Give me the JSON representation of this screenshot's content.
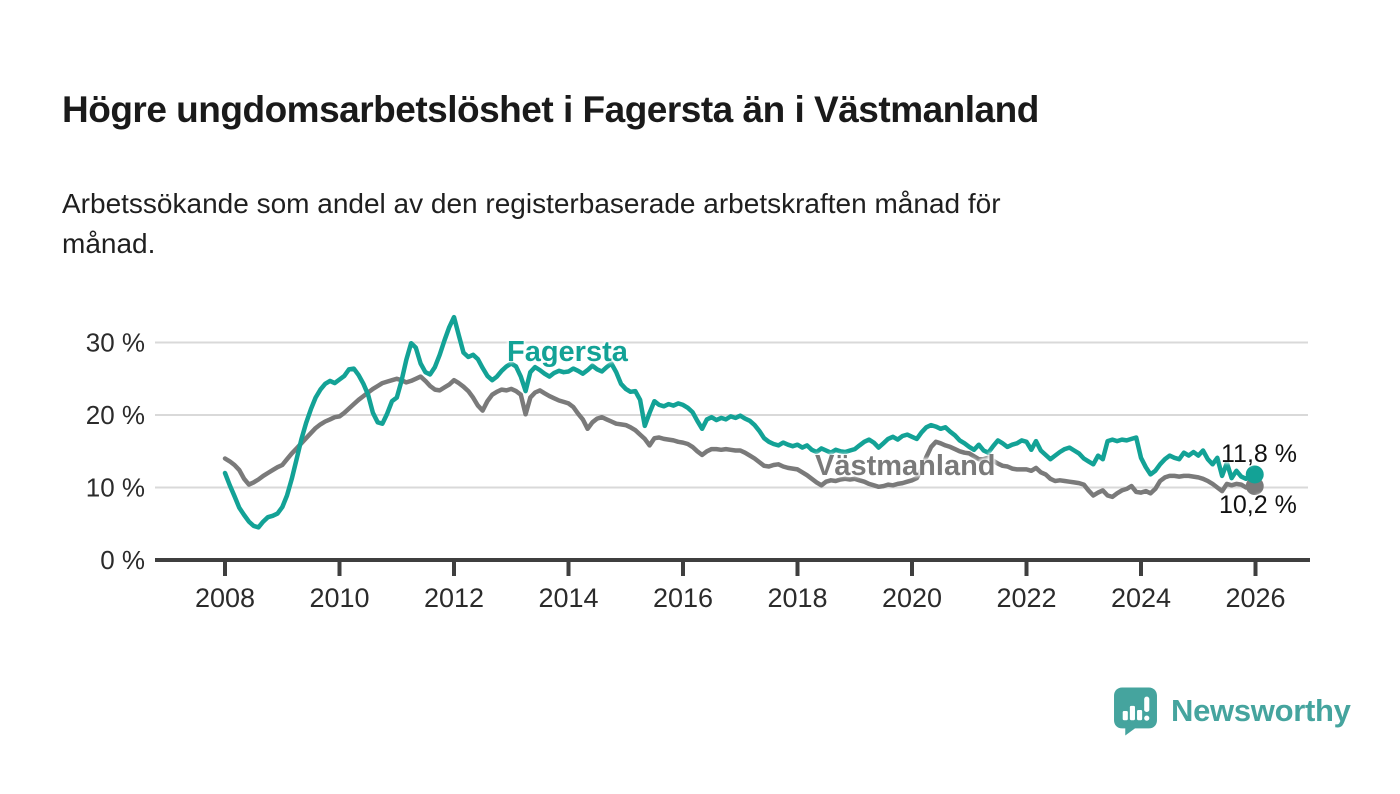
{
  "header": {
    "title": "Högre ungdomsarbetslöshet i Fagersta än i Västmanland",
    "subtitle": "Arbetssökande som andel av den registerbaserade arbetskraften månad för månad."
  },
  "colors": {
    "fagersta_teal": "#13a296",
    "vastmanland_gray": "#7a7a7a",
    "axis_line": "#3f3f3f",
    "gridline": "#d9d9d9",
    "tick_text": "#2b2b2b",
    "end_label_text": "#111111",
    "brand_teal": "#45a49e"
  },
  "chart_data": {
    "type": "line",
    "title": "Högre ungdomsarbetslöshet i Fagersta än i Västmanland",
    "subtitle": "Arbetssökande som andel av den registerbaserade arbetskraften månad för månad.",
    "x_start_year": 2008,
    "points_per_year": 12,
    "x_ticks": [
      2008,
      2010,
      2012,
      2014,
      2016,
      2018,
      2020,
      2022,
      2024,
      2026
    ],
    "x_tick_labels": [
      "2008",
      "2010",
      "2012",
      "2014",
      "2016",
      "2018",
      "2020",
      "2022",
      "2024",
      "2026"
    ],
    "y_ticks": [
      0,
      10,
      20,
      30
    ],
    "y_tick_labels": [
      "0 %",
      "10 %",
      "20 %",
      "30 %"
    ],
    "ylim": [
      0,
      35
    ],
    "grid": true,
    "legend_position": "inline-labels",
    "series": [
      {
        "name": "Västmanland",
        "color": "#7a7a7a",
        "end_label": "10,2 %",
        "end_value": 10.2,
        "values": [
          14.0,
          13.6,
          13.1,
          12.4,
          11.2,
          10.4,
          10.7,
          11.1,
          11.6,
          12.0,
          12.4,
          12.8,
          13.1,
          13.9,
          14.7,
          15.4,
          16.1,
          16.8,
          17.5,
          18.2,
          18.7,
          19.1,
          19.4,
          19.7,
          19.8,
          20.3,
          20.9,
          21.5,
          22.1,
          22.6,
          23.1,
          23.6,
          24.0,
          24.4,
          24.6,
          24.8,
          25.0,
          24.8,
          24.5,
          24.7,
          25.0,
          25.3,
          24.7,
          24.0,
          23.5,
          23.4,
          23.8,
          24.2,
          24.8,
          24.4,
          23.9,
          23.3,
          22.4,
          21.3,
          20.6,
          21.9,
          22.8,
          23.2,
          23.5,
          23.4,
          23.6,
          23.3,
          22.8,
          20.1,
          22.4,
          23.1,
          23.4,
          23.0,
          22.6,
          22.3,
          22.0,
          21.8,
          21.6,
          21.1,
          20.2,
          19.4,
          18.1,
          19.0,
          19.5,
          19.7,
          19.4,
          19.1,
          18.8,
          18.7,
          18.6,
          18.3,
          17.9,
          17.3,
          16.7,
          15.8,
          16.8,
          16.9,
          16.7,
          16.6,
          16.5,
          16.3,
          16.2,
          16.0,
          15.6,
          15.0,
          14.5,
          15.0,
          15.3,
          15.3,
          15.2,
          15.3,
          15.2,
          15.1,
          15.1,
          14.8,
          14.4,
          14.0,
          13.5,
          13.0,
          12.9,
          13.1,
          13.2,
          12.9,
          12.7,
          12.6,
          12.5,
          12.1,
          11.7,
          11.2,
          10.7,
          10.3,
          10.8,
          11.0,
          10.9,
          11.1,
          11.2,
          11.1,
          11.2,
          11.0,
          10.8,
          10.5,
          10.3,
          10.1,
          10.2,
          10.4,
          10.3,
          10.5,
          10.6,
          10.8,
          11.0,
          11.3,
          12.5,
          14.2,
          15.6,
          16.3,
          16.1,
          15.8,
          15.6,
          15.3,
          15.0,
          14.8,
          14.7,
          14.3,
          13.9,
          13.9,
          14.1,
          13.7,
          13.3,
          13.0,
          12.9,
          12.6,
          12.5,
          12.5,
          12.5,
          12.3,
          12.7,
          12.1,
          11.8,
          11.2,
          10.9,
          11.0,
          10.9,
          10.8,
          10.7,
          10.6,
          10.4,
          9.6,
          8.9,
          9.3,
          9.6,
          8.9,
          8.7,
          9.2,
          9.6,
          9.8,
          10.2,
          9.4,
          9.3,
          9.5,
          9.2,
          9.8,
          10.9,
          11.4,
          11.6,
          11.6,
          11.5,
          11.6,
          11.6,
          11.5,
          11.4,
          11.2,
          10.9,
          10.5,
          10.0,
          9.5,
          10.5,
          10.3,
          10.5,
          10.4,
          10.0,
          10.2
        ]
      },
      {
        "name": "Fagersta",
        "color": "#13a296",
        "end_label": "11,8 %",
        "end_value": 11.8,
        "values": [
          12.0,
          10.3,
          8.8,
          7.2,
          6.2,
          5.3,
          4.7,
          4.5,
          5.3,
          5.9,
          6.1,
          6.4,
          7.3,
          8.9,
          11.2,
          13.9,
          16.6,
          18.9,
          20.8,
          22.4,
          23.5,
          24.3,
          24.7,
          24.4,
          24.9,
          25.4,
          26.3,
          26.4,
          25.5,
          24.3,
          22.8,
          20.3,
          19.0,
          18.8,
          20.2,
          21.9,
          22.4,
          24.7,
          27.6,
          29.9,
          29.3,
          27.1,
          25.9,
          25.6,
          26.6,
          28.3,
          30.3,
          32.1,
          33.5,
          31.0,
          28.6,
          28.0,
          28.3,
          27.7,
          26.5,
          25.4,
          24.8,
          25.3,
          26.1,
          26.7,
          27.1,
          26.7,
          25.3,
          23.3,
          25.9,
          26.6,
          26.2,
          25.7,
          25.3,
          25.8,
          26.1,
          25.9,
          26.0,
          26.4,
          26.1,
          25.7,
          26.2,
          26.8,
          26.3,
          26.0,
          26.6,
          27.1,
          25.9,
          24.3,
          23.6,
          23.2,
          23.3,
          22.1,
          18.5,
          20.3,
          21.9,
          21.4,
          21.2,
          21.5,
          21.3,
          21.6,
          21.4,
          21.0,
          20.4,
          19.2,
          18.1,
          19.4,
          19.7,
          19.3,
          19.6,
          19.4,
          19.8,
          19.6,
          19.9,
          19.5,
          19.2,
          18.6,
          17.8,
          16.8,
          16.3,
          16.0,
          15.8,
          16.2,
          15.9,
          15.7,
          15.9,
          15.5,
          15.8,
          15.2,
          14.9,
          15.4,
          15.1,
          14.8,
          15.2,
          15.0,
          14.9,
          15.1,
          15.3,
          15.8,
          16.3,
          16.6,
          16.2,
          15.5,
          16.1,
          16.7,
          17.0,
          16.6,
          17.1,
          17.3,
          17.0,
          16.7,
          17.6,
          18.3,
          18.6,
          18.4,
          18.1,
          18.3,
          17.7,
          17.2,
          16.5,
          16.1,
          15.6,
          15.2,
          15.9,
          15.1,
          14.8,
          15.7,
          16.5,
          16.1,
          15.6,
          15.9,
          16.1,
          16.5,
          16.3,
          15.2,
          16.4,
          15.1,
          14.5,
          13.9,
          14.4,
          14.9,
          15.3,
          15.5,
          15.1,
          14.7,
          14.0,
          13.6,
          13.2,
          14.4,
          13.9,
          16.4,
          16.6,
          16.4,
          16.6,
          16.5,
          16.7,
          16.9,
          14.1,
          12.8,
          11.8,
          12.3,
          13.2,
          13.9,
          14.4,
          14.1,
          13.9,
          14.8,
          14.4,
          14.9,
          14.4,
          15.1,
          13.9,
          13.2,
          14.1,
          11.6,
          13.4,
          11.3,
          12.3,
          11.5,
          11.2,
          11.8
        ]
      }
    ]
  },
  "footer": {
    "brand": "Newsworthy"
  }
}
